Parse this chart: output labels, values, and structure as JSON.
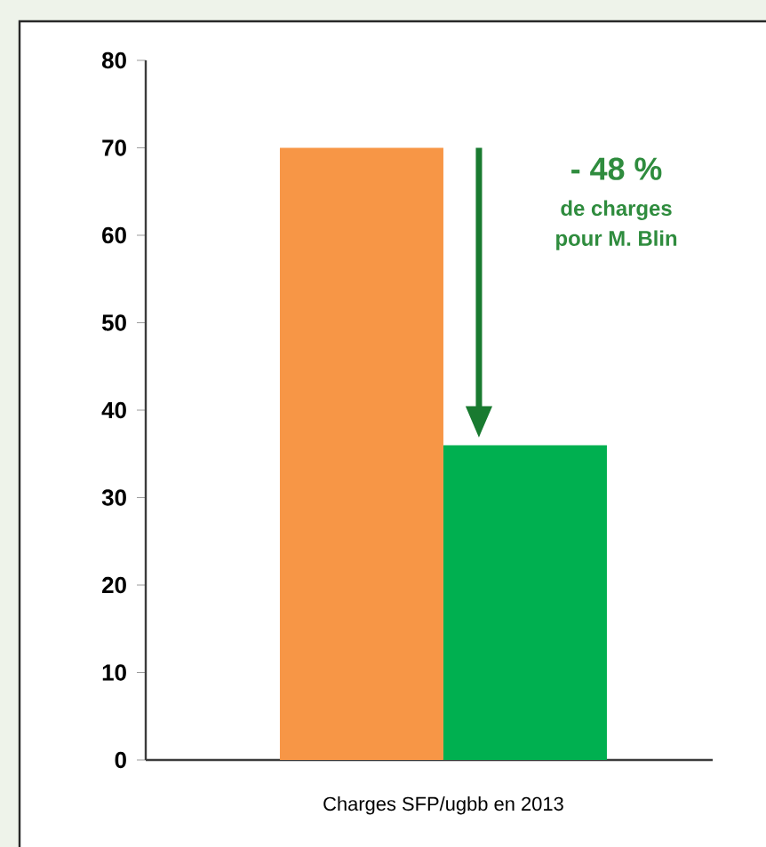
{
  "chart_data": {
    "type": "bar",
    "categories": [
      "Charges SFP/ugbb en 2013"
    ],
    "series": [
      {
        "color": "#f79646",
        "values": [
          70
        ]
      },
      {
        "color": "#00b050",
        "values": [
          36
        ]
      }
    ],
    "ylim": [
      0,
      80
    ],
    "yticks": [
      0,
      10,
      20,
      30,
      40,
      50,
      60,
      70,
      80
    ],
    "grid": false,
    "annotations": [
      "- 48 %",
      "de charges",
      "pour M. Blin"
    ]
  }
}
